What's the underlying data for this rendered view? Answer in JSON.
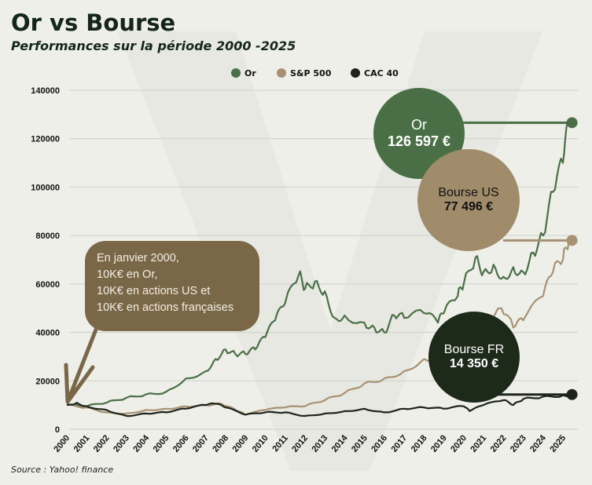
{
  "title": "Or vs Bourse",
  "subtitle": "Performances sur la période 2000 -2025",
  "source": "Source : Yahoo! finance",
  "callout": [
    "En janvier 2000,",
    "10K€ en Or,",
    "10K€ en actions US et",
    "10K€ en actions françaises"
  ],
  "bubbles": {
    "gold": {
      "label": "Or",
      "value": "126 597 €"
    },
    "us": {
      "label": "Bourse US",
      "value": "77 496 €"
    },
    "fr": {
      "label": "Bourse FR",
      "value": "14 350 €"
    }
  },
  "colors": {
    "gold": "#4a6f46",
    "sp500": "#a69173",
    "cac40": "#1e2419",
    "callout": "#7a6748"
  },
  "chart_data": {
    "type": "line",
    "title": "Or vs Bourse",
    "xlabel": "",
    "ylabel": "",
    "xlim": [
      2000,
      2025.3
    ],
    "ylim": [
      0,
      140000
    ],
    "yticks": [
      0,
      20000,
      40000,
      60000,
      80000,
      100000,
      120000,
      140000
    ],
    "xticks": [
      2000,
      2001,
      2002,
      2003,
      2004,
      2005,
      2006,
      2007,
      2008,
      2009,
      2010,
      2011,
      2012,
      2013,
      2014,
      2015,
      2016,
      2017,
      2018,
      2019,
      2020,
      2021,
      2022,
      2023,
      2024,
      2025
    ],
    "grid": true,
    "legend": "top-center",
    "series": [
      {
        "name": "Or",
        "color": "#4a6f46",
        "points": [
          [
            2000,
            10000
          ],
          [
            2001,
            9500
          ],
          [
            2002,
            11000
          ],
          [
            2003,
            13000
          ],
          [
            2004,
            14500
          ],
          [
            2005,
            15500
          ],
          [
            2006,
            21000
          ],
          [
            2007,
            24000
          ],
          [
            2007.5,
            29000
          ],
          [
            2008,
            33000
          ],
          [
            2008.5,
            31000
          ],
          [
            2009,
            31000
          ],
          [
            2009.5,
            33000
          ],
          [
            2010,
            38000
          ],
          [
            2010.5,
            45000
          ],
          [
            2011,
            52000
          ],
          [
            2011.7,
            64000
          ],
          [
            2012,
            58000
          ],
          [
            2012.5,
            61000
          ],
          [
            2013,
            57000
          ],
          [
            2013.5,
            46000
          ],
          [
            2014,
            47000
          ],
          [
            2015,
            44000
          ],
          [
            2015.5,
            42000
          ],
          [
            2016,
            40000
          ],
          [
            2016.5,
            47000
          ],
          [
            2017,
            46000
          ],
          [
            2018,
            48000
          ],
          [
            2018.7,
            44000
          ],
          [
            2019,
            48000
          ],
          [
            2019.7,
            55000
          ],
          [
            2020,
            60000
          ],
          [
            2020.6,
            71000
          ],
          [
            2021,
            65000
          ],
          [
            2021.5,
            68000
          ],
          [
            2022,
            63000
          ],
          [
            2022.5,
            67000
          ],
          [
            2023,
            65000
          ],
          [
            2023.5,
            73000
          ],
          [
            2024,
            80000
          ],
          [
            2024.5,
            98000
          ],
          [
            2025,
            110000
          ],
          [
            2025.3,
            126597
          ]
        ]
      },
      {
        "name": "S&P 500",
        "color": "#a69173",
        "points": [
          [
            2000,
            10000
          ],
          [
            2001,
            9000
          ],
          [
            2002,
            7000
          ],
          [
            2003,
            6500
          ],
          [
            2004,
            8000
          ],
          [
            2005,
            8500
          ],
          [
            2006,
            9500
          ],
          [
            2007,
            10000
          ],
          [
            2007.8,
            10500
          ],
          [
            2008.5,
            8000
          ],
          [
            2009,
            6000
          ],
          [
            2010,
            8000
          ],
          [
            2011,
            9000
          ],
          [
            2012,
            9500
          ],
          [
            2013,
            12000
          ],
          [
            2014,
            15000
          ],
          [
            2015,
            19000
          ],
          [
            2016,
            21000
          ],
          [
            2017,
            24000
          ],
          [
            2018,
            29000
          ],
          [
            2019,
            30000
          ],
          [
            2020,
            35000
          ],
          [
            2021,
            40000
          ],
          [
            2021.9,
            50000
          ],
          [
            2022.5,
            42000
          ],
          [
            2023,
            45000
          ],
          [
            2024,
            55000
          ],
          [
            2024.5,
            65000
          ],
          [
            2025,
            70000
          ],
          [
            2025.3,
            78000
          ]
        ]
      },
      {
        "name": "CAC 40",
        "color": "#1e2419",
        "points": [
          [
            2000,
            10000
          ],
          [
            2000.5,
            11000
          ],
          [
            2001,
            9500
          ],
          [
            2002,
            8000
          ],
          [
            2003,
            5500
          ],
          [
            2004,
            6500
          ],
          [
            2005,
            7000
          ],
          [
            2006,
            8500
          ],
          [
            2007,
            10000
          ],
          [
            2007.5,
            10500
          ],
          [
            2008,
            9000
          ],
          [
            2009,
            6000
          ],
          [
            2010,
            7000
          ],
          [
            2011,
            7000
          ],
          [
            2012,
            5500
          ],
          [
            2013,
            6500
          ],
          [
            2014,
            7500
          ],
          [
            2015,
            8500
          ],
          [
            2016,
            7000
          ],
          [
            2017,
            8500
          ],
          [
            2018,
            9000
          ],
          [
            2019,
            8500
          ],
          [
            2020,
            9500
          ],
          [
            2020.3,
            7500
          ],
          [
            2021,
            10000
          ],
          [
            2022,
            12000
          ],
          [
            2022.5,
            10000
          ],
          [
            2023,
            12500
          ],
          [
            2024,
            13500
          ],
          [
            2025,
            14000
          ],
          [
            2025.3,
            14350
          ]
        ]
      }
    ]
  }
}
